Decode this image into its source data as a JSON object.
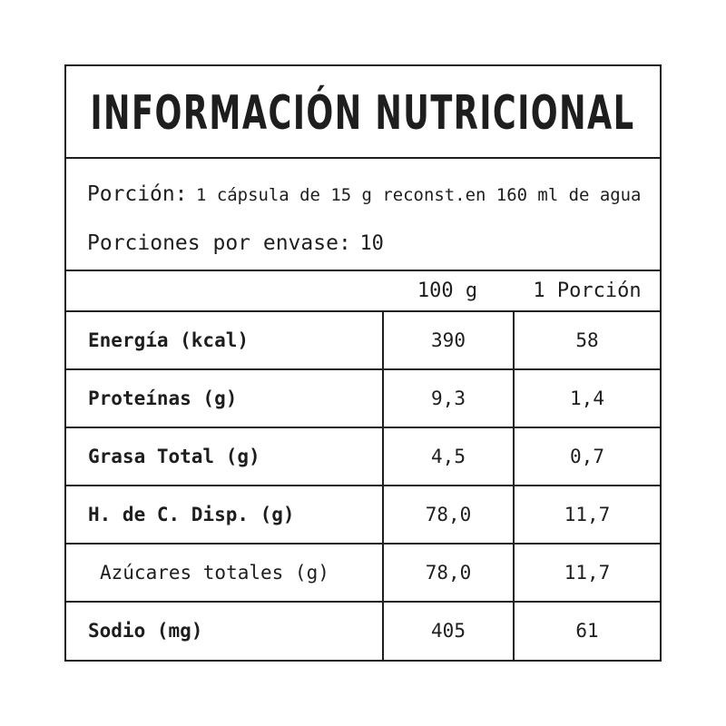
{
  "title": "INFORMACIÓN NUTRICIONAL",
  "serving": {
    "label": "Porción:",
    "value": "1 cápsula de 15 g reconst.en 160 ml de agua"
  },
  "servings_per_container": {
    "label": "Porciones por envase:",
    "value": "10"
  },
  "columns": {
    "per_100": "100 g",
    "per_portion": "1 Porción"
  },
  "rows": [
    {
      "name": "Energía (kcal)",
      "per_100": "390",
      "per_portion": "58"
    },
    {
      "name": "Proteínas (g)",
      "per_100": "9,3",
      "per_portion": "1,4"
    },
    {
      "name": "Grasa Total (g)",
      "per_100": "4,5",
      "per_portion": "0,7"
    },
    {
      "name": "H. de C. Disp. (g)",
      "per_100": "78,0",
      "per_portion": "11,7"
    },
    {
      "name": "Azúcares totales (g)",
      "per_100": "78,0",
      "per_portion": "11,7"
    },
    {
      "name": "Sodio (mg)",
      "per_100": "405",
      "per_portion": "61"
    }
  ],
  "colors": {
    "ink": "#1e1e1e",
    "background": "#ffffff"
  }
}
